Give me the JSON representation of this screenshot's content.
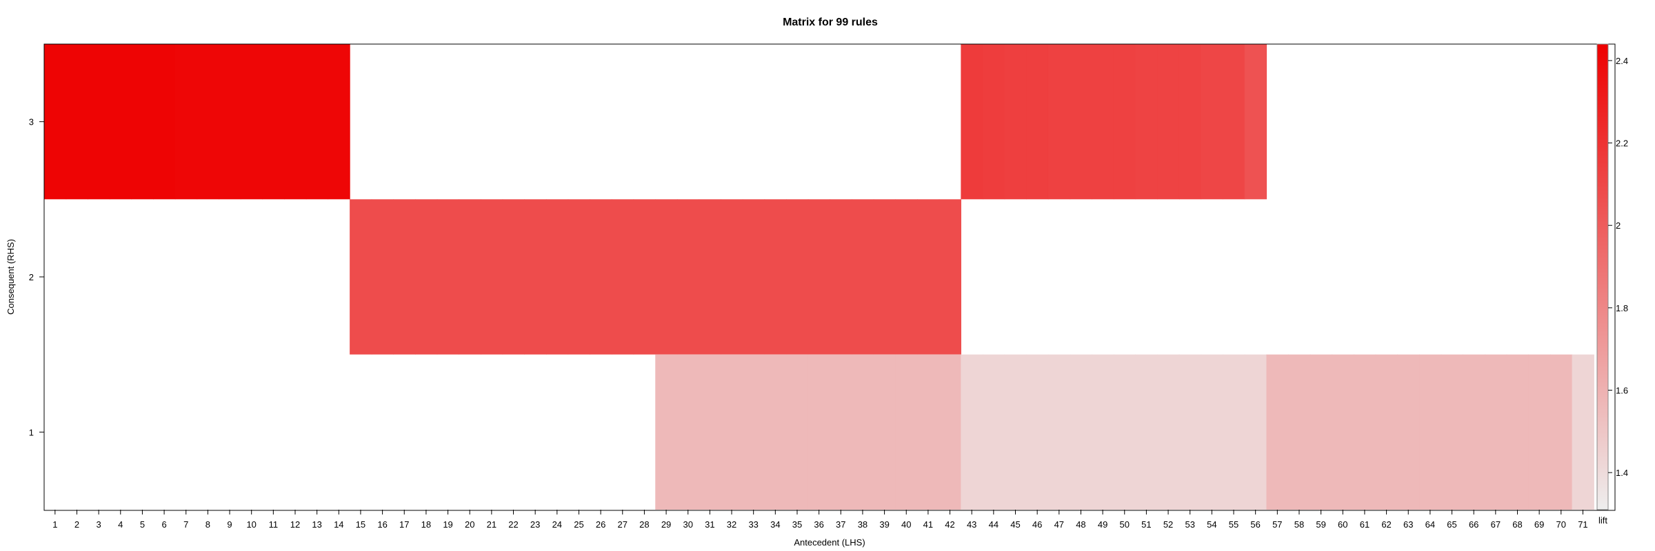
{
  "chart_data": {
    "type": "heatmap",
    "title": "Matrix for 99 rules",
    "xlabel": "Antecedent (LHS)",
    "ylabel": "Consequent (RHS)",
    "x_categories": [
      1,
      2,
      3,
      4,
      5,
      6,
      7,
      8,
      9,
      10,
      11,
      12,
      13,
      14,
      15,
      16,
      17,
      18,
      19,
      20,
      21,
      22,
      23,
      24,
      25,
      26,
      27,
      28,
      29,
      30,
      31,
      32,
      33,
      34,
      35,
      36,
      37,
      38,
      39,
      40,
      41,
      42,
      43,
      44,
      45,
      46,
      47,
      48,
      49,
      50,
      51,
      52,
      53,
      54,
      55,
      56,
      57,
      58,
      59,
      60,
      61,
      62,
      63,
      64,
      65,
      66,
      67,
      68,
      69,
      70,
      71
    ],
    "y_categories": [
      1,
      2,
      3
    ],
    "cell_groups": [
      {
        "rhs": 3,
        "lhs_from": 1,
        "lhs_to": 14,
        "lift": [
          2.42,
          2.42,
          2.42,
          2.42,
          2.42,
          2.42,
          2.41,
          2.41,
          2.41,
          2.41,
          2.41,
          2.41,
          2.41,
          2.41
        ]
      },
      {
        "rhs": 2,
        "lhs_from": 15,
        "lhs_to": 42,
        "lift": [
          2.08,
          2.08,
          2.08,
          2.08,
          2.08,
          2.08,
          2.08,
          2.08,
          2.08,
          2.08,
          2.08,
          2.08,
          2.08,
          2.08,
          2.08,
          2.08,
          2.08,
          2.08,
          2.08,
          2.08,
          2.08,
          2.08,
          2.08,
          2.08,
          2.08,
          2.08,
          2.08,
          2.08
        ]
      },
      {
        "rhs": 3,
        "lhs_from": 43,
        "lhs_to": 56,
        "lift": [
          2.16,
          2.15,
          2.14,
          2.14,
          2.13,
          2.13,
          2.13,
          2.13,
          2.12,
          2.12,
          2.12,
          2.11,
          2.11,
          2.05
        ]
      },
      {
        "rhs": 1,
        "lhs_from": 29,
        "lhs_to": 42,
        "lift": [
          1.56,
          1.56,
          1.56,
          1.56,
          1.56,
          1.56,
          1.56,
          1.56,
          1.56,
          1.56,
          1.56,
          1.56,
          1.56,
          1.56
        ]
      },
      {
        "rhs": 1,
        "lhs_from": 43,
        "lhs_to": 56,
        "lift": [
          1.43,
          1.43,
          1.43,
          1.43,
          1.43,
          1.43,
          1.43,
          1.43,
          1.43,
          1.43,
          1.43,
          1.43,
          1.43,
          1.43
        ]
      },
      {
        "rhs": 1,
        "lhs_from": 57,
        "lhs_to": 70,
        "lift": [
          1.56,
          1.56,
          1.56,
          1.56,
          1.56,
          1.56,
          1.56,
          1.56,
          1.56,
          1.56,
          1.56,
          1.56,
          1.56,
          1.56
        ]
      },
      {
        "rhs": 1,
        "lhs_from": 71,
        "lhs_to": 71,
        "lift": [
          1.43
        ]
      }
    ],
    "colorbar": {
      "label": "lift",
      "min": 1.31,
      "max": 2.44,
      "ticks": [
        "1.4",
        "1.6",
        "1.8",
        "2",
        "2.2",
        "2.4"
      ],
      "low_color": "#EEEEEE",
      "high_color": "#EE0000"
    },
    "grid": false,
    "legend": "right"
  }
}
